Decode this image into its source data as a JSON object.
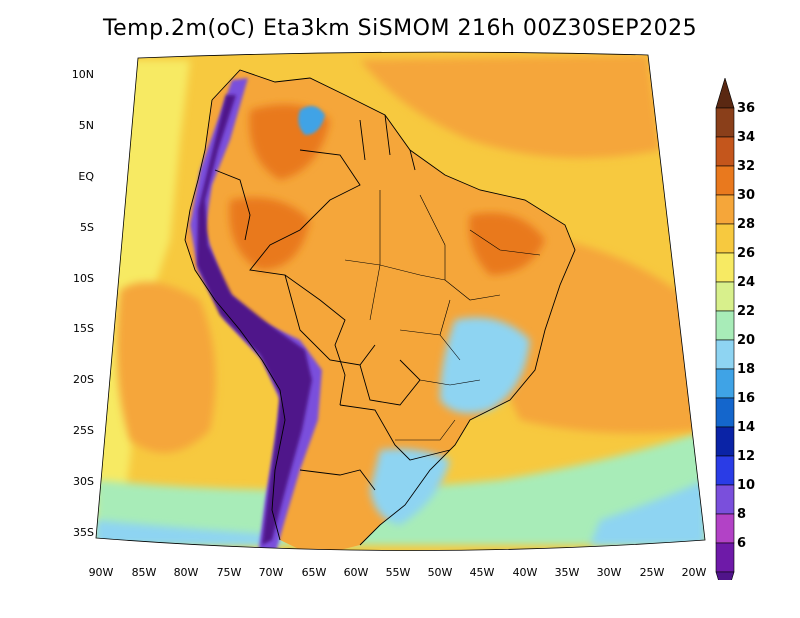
{
  "title": "Temp.2m(oC) Eta3km SiSMOM 216h 00Z30SEP2025",
  "variable": "2 m air temperature",
  "units": "oC",
  "lat_labels": [
    "10N",
    "5N",
    "EQ",
    "5S",
    "10S",
    "15S",
    "20S",
    "25S",
    "30S",
    "35S"
  ],
  "lon_labels": [
    "90W",
    "85W",
    "80W",
    "75W",
    "70W",
    "65W",
    "60W",
    "55W",
    "50W",
    "45W",
    "40W",
    "35W",
    "30W",
    "25W",
    "20W"
  ],
  "colorbar": {
    "labels": [
      "36",
      "34",
      "32",
      "30",
      "28",
      "26",
      "24",
      "22",
      "20",
      "18",
      "16",
      "14",
      "12",
      "10",
      "8",
      "6"
    ],
    "colors": [
      "#5a2812",
      "#8a3f1a",
      "#c4561c",
      "#e9791e",
      "#f5a63a",
      "#f7c93f",
      "#f7ea63",
      "#d8f08c",
      "#a8ecb8",
      "#8ed4f2",
      "#3fa3e6",
      "#1466cc",
      "#0a23a6",
      "#2a3ce6",
      "#7a4fdc",
      "#b242c6",
      "#6e1aa8",
      "#50148a"
    ]
  },
  "colors": {
    "ocean_warm": "#f5a63a",
    "ocean_mid": "#f7c93f",
    "ocean_cool": "#f7ea63",
    "coast_cool": "#a8ecb8",
    "coast_cold": "#8ed4f2",
    "andes_cold": "#50148a",
    "andes_mid": "#7a4fdc",
    "land_hot": "#e9791e",
    "land_warm": "#f5a63a"
  }
}
